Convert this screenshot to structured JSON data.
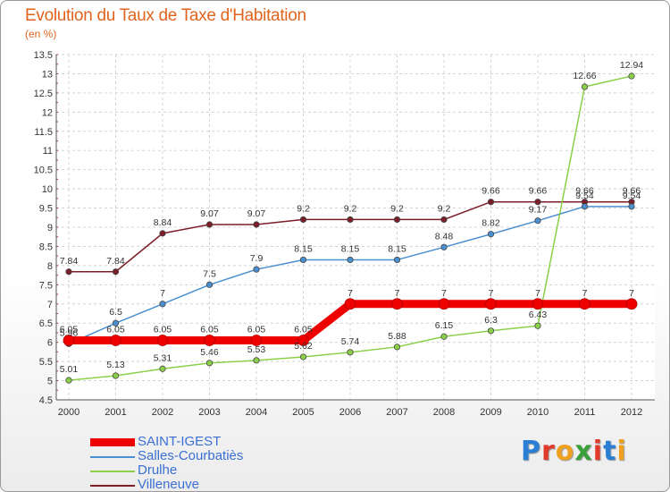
{
  "chart_data": {
    "type": "line",
    "title": "Evolution du Taux de Taxe d'Habitation",
    "subtitle": "(en %)",
    "x": [
      "2000",
      "2001",
      "2002",
      "2003",
      "2004",
      "2005",
      "2006",
      "2007",
      "2008",
      "2009",
      "2010",
      "2011",
      "2012"
    ],
    "ylim": [
      4.5,
      13.5
    ],
    "yticks": [
      "4.5",
      "5",
      "5.5",
      "6",
      "6.5",
      "7",
      "7.5",
      "8",
      "8.5",
      "9",
      "9.5",
      "10",
      "10.5",
      "11",
      "11.5",
      "12",
      "12.5",
      "13",
      "13.5"
    ],
    "grid": true,
    "legend_position": "bottom-left",
    "series": [
      {
        "name": "Villeneuve",
        "color": "#7b1e28",
        "values": [
          7.84,
          7.84,
          8.84,
          9.07,
          9.07,
          9.2,
          9.2,
          9.2,
          9.2,
          9.66,
          9.66,
          9.66,
          9.66
        ],
        "labels": [
          "7.84",
          "7.84",
          "8.84",
          "9.07",
          "9.07",
          "9.2",
          "9.2",
          "9.2",
          "9.2",
          "9.66",
          "9.66",
          "9.66",
          "9.66"
        ]
      },
      {
        "name": "Salles-Courbatiès",
        "color": "#4a8fd0",
        "values": [
          5.96,
          6.5,
          7,
          7.5,
          7.9,
          8.15,
          8.15,
          8.15,
          8.48,
          8.82,
          9.17,
          9.54,
          9.54
        ],
        "labels": [
          "5.96",
          "6.5",
          "7",
          "7.5",
          "7.9",
          "8.15",
          "8.15",
          "8.15",
          "8.48",
          "8.82",
          "9.17",
          "9.54",
          "9.54"
        ]
      },
      {
        "name": "Drulhe",
        "color": "#8cd04a",
        "values": [
          5.01,
          5.13,
          5.31,
          5.46,
          5.53,
          5.62,
          5.74,
          5.88,
          6.15,
          6.3,
          6.43,
          12.66,
          12.94
        ],
        "labels": [
          "5.01",
          "5.13",
          "5.31",
          "5.46",
          "5.53",
          "5.62",
          "5.74",
          "5.88",
          "6.15",
          "6.3",
          "6.43",
          "12.66",
          "12.94"
        ]
      },
      {
        "name": "SAINT-IGEST",
        "color": "#ee0000",
        "values": [
          6.05,
          6.05,
          6.05,
          6.05,
          6.05,
          6.05,
          7,
          7,
          7,
          7,
          7,
          7,
          7
        ],
        "labels": [
          "6.05",
          "6.05",
          "6.05",
          "6.05",
          "6.05",
          "6.05",
          "7",
          "7",
          "7",
          "7",
          "7",
          "7",
          "7"
        ]
      }
    ],
    "legend_order": [
      "SAINT-IGEST",
      "Salles-Courbatiès",
      "Drulhe",
      "Villeneuve"
    ]
  },
  "logo": {
    "letters": [
      "P",
      "r",
      "o",
      "x",
      "i",
      "t",
      "i"
    ],
    "colors": [
      "#2a7fd4",
      "#e03a2a",
      "#f0a020",
      "#3aa03a",
      "#e03a2a",
      "#2a7fd4",
      "#f0a020"
    ]
  }
}
